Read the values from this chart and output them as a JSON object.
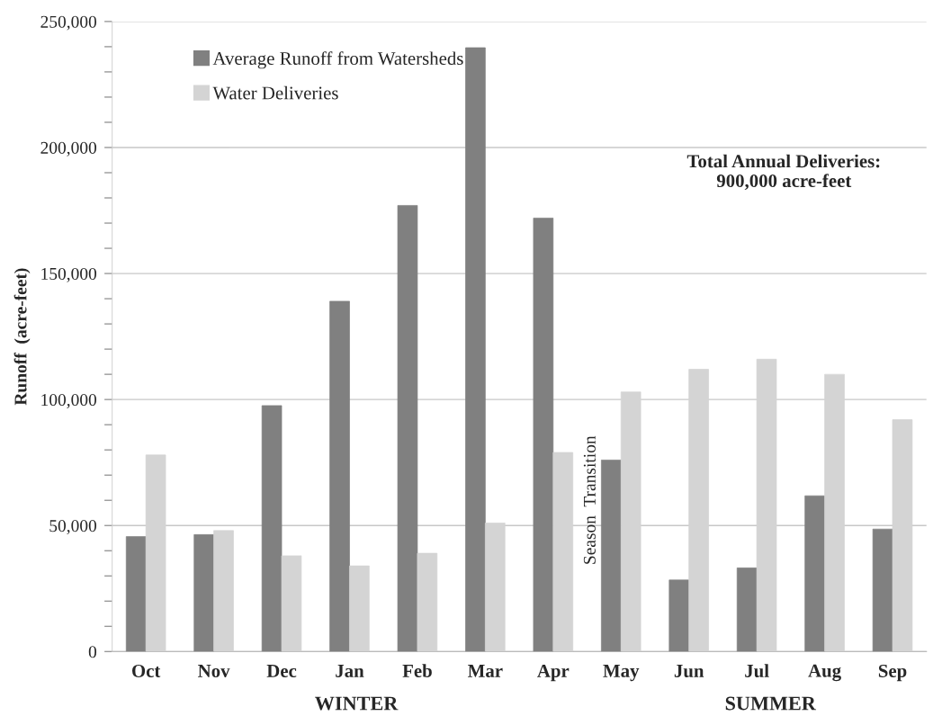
{
  "chart_data": {
    "type": "bar",
    "ylabel": "Runoff  (acre-feet)",
    "categories": [
      "Oct",
      "Nov",
      "Dec",
      "Jan",
      "Feb",
      "Mar",
      "Apr",
      "May",
      "Jun",
      "Jul",
      "Aug",
      "Sep"
    ],
    "series": [
      {
        "name": "Average Runoff from Watersheds",
        "color": "#808080",
        "values": [
          45600,
          46400,
          97600,
          139000,
          177000,
          239600,
          172000,
          76000,
          28400,
          33200,
          61800,
          48600
        ]
      },
      {
        "name": "Water Deliveries",
        "color": "#d4d4d4",
        "values": [
          78000,
          48000,
          38000,
          34000,
          39000,
          51000,
          79000,
          103000,
          112000,
          116000,
          110000,
          92000
        ]
      }
    ],
    "ylim": [
      0,
      250000
    ],
    "yticks": [
      {
        "value": 0,
        "label": "0"
      },
      {
        "value": 10000,
        "label": null
      },
      {
        "value": 20000,
        "label": null
      },
      {
        "value": 30000,
        "label": null
      },
      {
        "value": 40000,
        "label": null
      },
      {
        "value": 50000,
        "label": "50,000"
      },
      {
        "value": 60000,
        "label": null
      },
      {
        "value": 70000,
        "label": null
      },
      {
        "value": 80000,
        "label": null
      },
      {
        "value": 90000,
        "label": null
      },
      {
        "value": 100000,
        "label": "100,000"
      },
      {
        "value": 110000,
        "label": null
      },
      {
        "value": 120000,
        "label": null
      },
      {
        "value": 130000,
        "label": null
      },
      {
        "value": 140000,
        "label": null
      },
      {
        "value": 150000,
        "label": "150,000"
      },
      {
        "value": 160000,
        "label": null
      },
      {
        "value": 170000,
        "label": null
      },
      {
        "value": 180000,
        "label": null
      },
      {
        "value": 190000,
        "label": null
      },
      {
        "value": 200000,
        "label": "200,000"
      },
      {
        "value": 210000,
        "label": null
      },
      {
        "value": 220000,
        "label": null
      },
      {
        "value": 230000,
        "label": null
      },
      {
        "value": 240000,
        "label": null
      },
      {
        "value": 250000,
        "label": "250,000"
      }
    ],
    "grid": "y",
    "legend": "top left",
    "annotations": [
      "Total Annual Deliveries:\n900,000 acre-feet",
      "Season  Transition",
      "WINTER",
      "SUMMER"
    ]
  }
}
